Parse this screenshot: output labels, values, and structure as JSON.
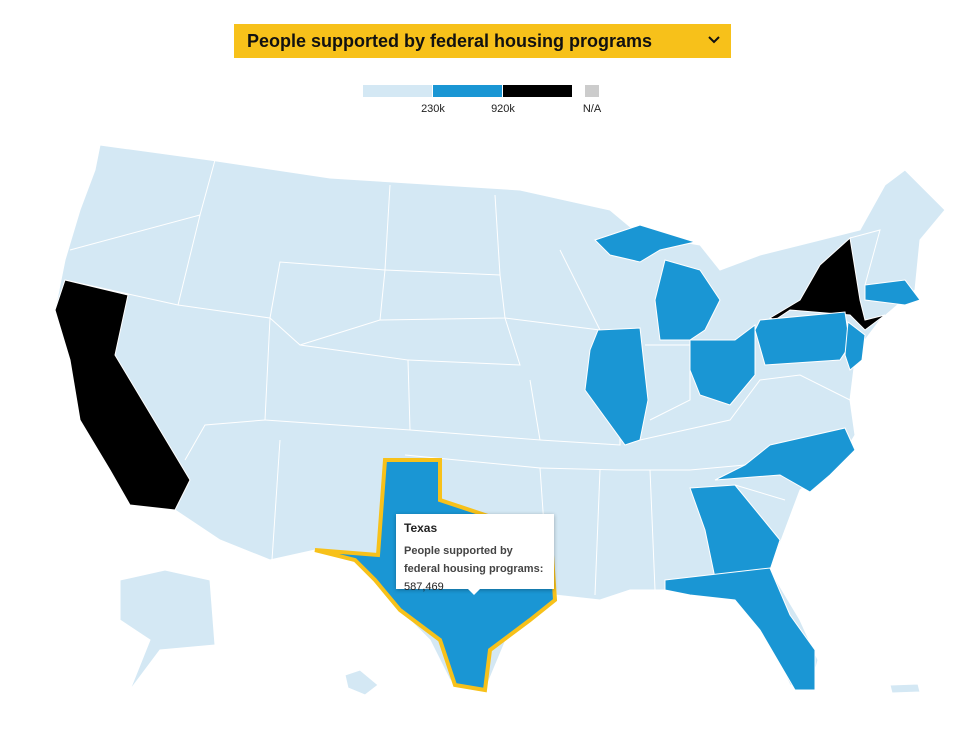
{
  "dropdown": {
    "label": "People supported by federal housing programs"
  },
  "legend": {
    "bins": [
      {
        "color": "#d4e8f4"
      },
      {
        "color": "#1a96d4"
      },
      {
        "color": "#000000"
      }
    ],
    "breaks": [
      "230k",
      "920k"
    ],
    "na": {
      "label": "N/A",
      "color": "#cccccc"
    }
  },
  "tooltip": {
    "title": "Texas",
    "label": "People supported by federal housing programs:",
    "value": "587,469"
  }
}
